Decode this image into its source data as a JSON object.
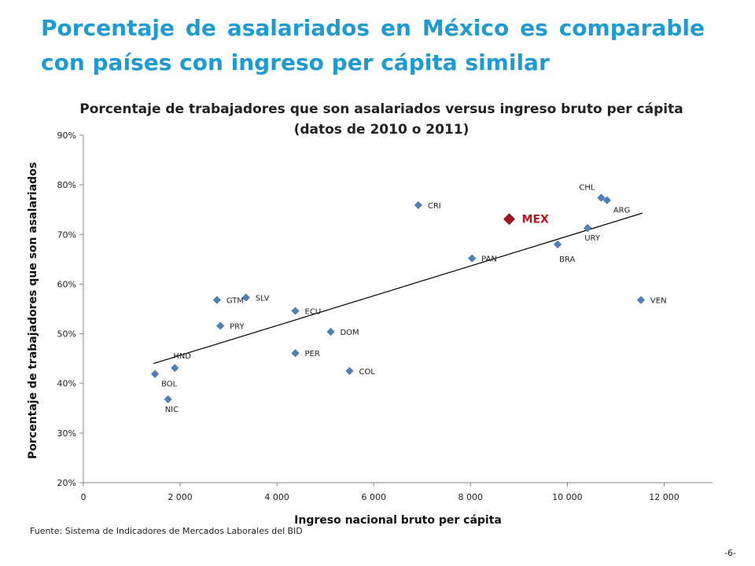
{
  "slide": {
    "title": "Porcentaje de asalariados en México es comparable con países con ingreso per cápita similar",
    "source": "Fuente: Sistema de Indicadores de Mercados Laborales del BID",
    "page_number": "-6-"
  },
  "colors": {
    "title": "#1f9bd1",
    "marker": "#4f81bd",
    "highlight_marker": "#a0141e",
    "highlight_label": "#c0141e",
    "trendline": "#000000"
  },
  "chart_data": {
    "type": "scatter",
    "title": "Porcentaje de trabajadores que son asalariados versus ingreso bruto per cápita (datos de 2010 o 2011)",
    "xlabel": "Ingreso nacional bruto per cápita",
    "ylabel": "Porcentaje de trabajadores que son asalariados",
    "xlim": [
      0,
      13000
    ],
    "ylim": [
      0.2,
      0.9
    ],
    "xticks": [
      0,
      2000,
      4000,
      6000,
      8000,
      10000,
      12000
    ],
    "xtick_labels": [
      "0",
      "2 000",
      "4 000",
      "6 000",
      "8 000",
      "10 000",
      "12 000"
    ],
    "yticks": [
      0.2,
      0.3,
      0.4,
      0.5,
      0.6,
      0.7,
      0.8,
      0.9
    ],
    "ytick_labels": [
      "20%",
      "30%",
      "40%",
      "50%",
      "60%",
      "70%",
      "80%",
      "90%"
    ],
    "grid": false,
    "trendline": {
      "x": [
        1450,
        11550
      ],
      "y": [
        0.44,
        0.743
      ]
    },
    "points": [
      {
        "label": "CRI",
        "x": 6920,
        "y": 0.759,
        "label_pos": "right"
      },
      {
        "label": "CHL",
        "x": 10700,
        "y": 0.774,
        "label_pos": "above-left"
      },
      {
        "label": "ARG",
        "x": 10820,
        "y": 0.769,
        "label_pos": "below-right"
      },
      {
        "label": "MEX",
        "x": 8800,
        "y": 0.731,
        "label_pos": "right",
        "highlight": true
      },
      {
        "label": "URY",
        "x": 10420,
        "y": 0.713,
        "label_pos": "below-left"
      },
      {
        "label": "BRA",
        "x": 9800,
        "y": 0.68,
        "label_pos": "below"
      },
      {
        "label": "PAN",
        "x": 8030,
        "y": 0.652,
        "label_pos": "right"
      },
      {
        "label": "GTM",
        "x": 2760,
        "y": 0.568,
        "label_pos": "right"
      },
      {
        "label": "SLV",
        "x": 3360,
        "y": 0.573,
        "label_pos": "right"
      },
      {
        "label": "VEN",
        "x": 11520,
        "y": 0.568,
        "label_pos": "right"
      },
      {
        "label": "ECU",
        "x": 4380,
        "y": 0.546,
        "label_pos": "right"
      },
      {
        "label": "PRY",
        "x": 2830,
        "y": 0.516,
        "label_pos": "right"
      },
      {
        "label": "DOM",
        "x": 5110,
        "y": 0.504,
        "label_pos": "right"
      },
      {
        "label": "PER",
        "x": 4380,
        "y": 0.461,
        "label_pos": "right"
      },
      {
        "label": "HND",
        "x": 1890,
        "y": 0.431,
        "label_pos": "above-right"
      },
      {
        "label": "COL",
        "x": 5500,
        "y": 0.425,
        "label_pos": "right"
      },
      {
        "label": "BOL",
        "x": 1480,
        "y": 0.419,
        "label_pos": "below-right"
      },
      {
        "label": "NIC",
        "x": 1750,
        "y": 0.368,
        "label_pos": "below-left"
      }
    ]
  }
}
